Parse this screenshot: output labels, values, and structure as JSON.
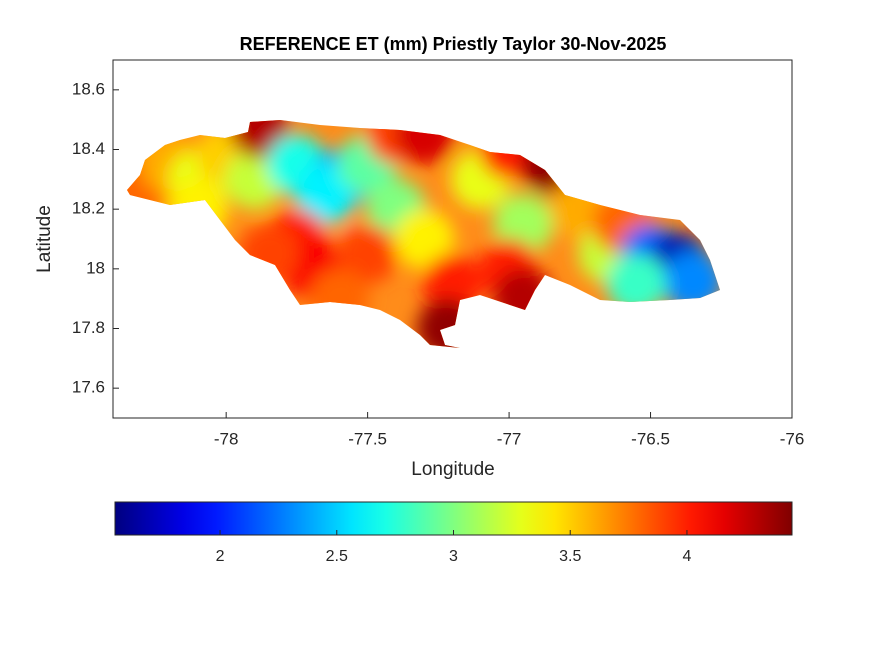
{
  "chart_data": {
    "type": "contour-map",
    "title": "REFERENCE ET (mm) Priestly Taylor 30-Nov-2025",
    "xlabel": "Longitude",
    "ylabel": "Latitude",
    "xlim": [
      -78.4,
      -76
    ],
    "xticks": [
      -78,
      -77.5,
      -77,
      -76.5,
      -76
    ],
    "ylim": [
      17.5,
      18.7
    ],
    "yticks": [
      17.6,
      17.8,
      18,
      18.2,
      18.4,
      18.6
    ],
    "colormap": "jet",
    "clim": [
      1.55,
      4.45
    ],
    "cticks": [
      2,
      2.5,
      3,
      3.5,
      4
    ],
    "x": [
      -78.3,
      -78.2,
      -78.1,
      -78.0,
      -77.9,
      -77.88,
      -77.75,
      -77.6,
      -77.65,
      -77.75,
      -77.7,
      -77.5,
      -77.4,
      -77.3,
      -77.4,
      -77.5,
      -77.3,
      -77.2,
      -77.22,
      -77.1,
      -77.0,
      -76.85,
      -76.95,
      -77.0,
      -76.95,
      -76.75,
      -76.65,
      -76.6,
      -76.5,
      -76.4,
      -76.35,
      -76.55,
      -77.6,
      -77.85,
      -78.1
    ],
    "y": [
      18.28,
      18.35,
      18.3,
      18.38,
      18.3,
      18.47,
      18.35,
      18.3,
      18.25,
      18.1,
      18.0,
      18.35,
      18.45,
      18.45,
      18.2,
      18.05,
      18.1,
      17.95,
      17.8,
      18.3,
      18.4,
      18.35,
      18.15,
      18.0,
      17.9,
      18.2,
      18.05,
      18.15,
      18.05,
      18.02,
      17.96,
      17.95,
      17.9,
      18.05,
      18.2
    ],
    "values": [
      3.8,
      3.6,
      3.3,
      3.5,
      3.2,
      4.3,
      2.7,
      2.4,
      2.6,
      4.0,
      4.1,
      2.9,
      3.9,
      4.2,
      3.0,
      3.9,
      3.4,
      4.0,
      4.4,
      3.3,
      4.0,
      4.4,
      3.1,
      4.0,
      4.3,
      3.6,
      3.2,
      3.8,
      2.2,
      1.7,
      2.3,
      2.8,
      3.8,
      3.9,
      3.4
    ]
  }
}
